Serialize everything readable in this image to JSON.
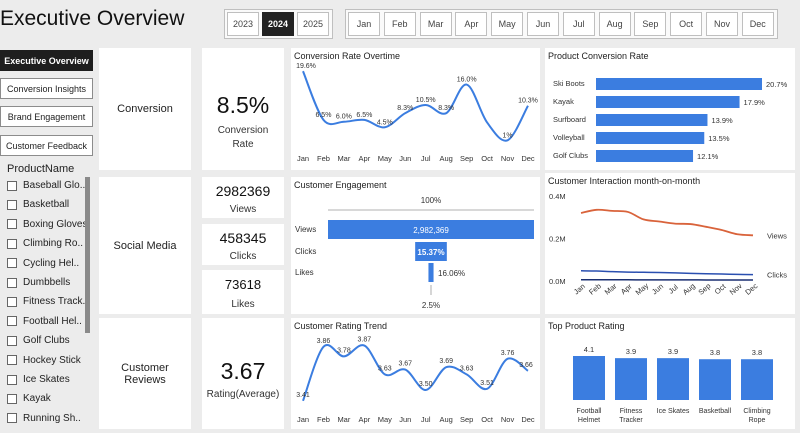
{
  "header": {
    "title": "Executive Overview"
  },
  "years": {
    "items": [
      "2023",
      "2024",
      "2025"
    ],
    "selected": "2024"
  },
  "months": [
    "Jan",
    "Feb",
    "Mar",
    "Apr",
    "May",
    "Jun",
    "Jul",
    "Aug",
    "Sep",
    "Oct",
    "Nov",
    "Dec"
  ],
  "nav": {
    "items": [
      "Executive Overview",
      "Conversion Insights",
      "Brand Engagement",
      "Customer Feedback"
    ],
    "active": "Executive Overview"
  },
  "slicer": {
    "title": "ProductName",
    "items": [
      "Baseball Glo..",
      "Basketball",
      "Boxing Gloves",
      "Climbing Ro..",
      "Cycling Hel..",
      "Dumbbells",
      "Fitness Track..",
      "Football Hel..",
      "Golf Clubs",
      "Hockey Stick",
      "Ice Skates",
      "Kayak",
      "Running Sh.."
    ]
  },
  "sections": {
    "conversion": "Conversion",
    "social": "Social Media",
    "reviews": "Customer Reviews"
  },
  "kpis": {
    "conversion_rate": {
      "value": "8.5%",
      "label": "Conversion Rate"
    },
    "views": {
      "value": "2982369",
      "label": "Views"
    },
    "clicks": {
      "value": "458345",
      "label": "Clicks"
    },
    "likes": {
      "value": "73618",
      "label": "Likes"
    },
    "rating": {
      "value": "3.67",
      "label": "Rating(Average)"
    }
  },
  "chart_data": [
    {
      "id": "conversion_trend",
      "type": "line",
      "title": "Conversion Rate Overtime",
      "x": [
        "Jan",
        "Feb",
        "Mar",
        "Apr",
        "May",
        "Jun",
        "Jul",
        "Aug",
        "Sep",
        "Oct",
        "Nov",
        "Dec"
      ],
      "values": [
        19.6,
        6.5,
        6.0,
        6.5,
        4.5,
        8.3,
        10.5,
        8.3,
        16.0,
        5.8,
        1,
        10.3
      ],
      "labels": [
        "19.6%",
        "6.5%",
        "6.0%",
        "6.5%",
        "4.5%",
        "8.3%",
        "10.5%",
        "8.3%",
        "16.0%",
        "",
        "1%",
        "10.3%"
      ],
      "color": "#3b7de0"
    },
    {
      "id": "product_conversion",
      "type": "bar",
      "title": "Product Conversion Rate",
      "categories": [
        "Ski Boots",
        "Kayak",
        "Surfboard",
        "Volleyball",
        "Golf Clubs"
      ],
      "values": [
        20.7,
        17.9,
        13.9,
        13.5,
        12.1
      ],
      "labels": [
        "20.7%",
        "17.9%",
        "13.9%",
        "13.5%",
        "12.1%"
      ],
      "color": "#3b7de0"
    },
    {
      "id": "engagement_funnel",
      "type": "bar",
      "title": "Customer Engagement",
      "categories": [
        "Views",
        "Clicks",
        "Likes"
      ],
      "values": [
        2982369,
        458345,
        73618
      ],
      "top_label": "100%",
      "bar_labels": [
        "2,982,369",
        "15.37%",
        "16.06%"
      ],
      "bottom_label": "2.5%",
      "color": "#3b7de0"
    },
    {
      "id": "interaction_mom",
      "type": "line",
      "title": "Customer Interaction month-on-month",
      "x": [
        "Jan",
        "Feb",
        "Mar",
        "Apr",
        "May",
        "Jun",
        "Jul",
        "Aug",
        "Sep",
        "Oct",
        "Nov",
        "Dec"
      ],
      "y_ticks": [
        "0.4M",
        "0.2M",
        "0.0M"
      ],
      "ylim": [
        0,
        400000
      ],
      "series": [
        {
          "name": "Views",
          "values": [
            320000,
            335000,
            330000,
            325000,
            290000,
            280000,
            270000,
            268000,
            255000,
            240000,
            220000,
            215000
          ],
          "color": "#d9633b"
        },
        {
          "name": "Clicks",
          "values": [
            48000,
            47000,
            44000,
            42000,
            41000,
            40000,
            38000,
            36000,
            34000,
            33000,
            31000,
            30000
          ],
          "color": "#2a4fb0"
        },
        {
          "name": "",
          "values": [
            6000,
            6000,
            5800,
            5600,
            5500,
            5400,
            5200,
            5100,
            5000,
            4900,
            4800,
            4700
          ],
          "color": "#1a2f70"
        }
      ]
    },
    {
      "id": "rating_trend",
      "type": "line",
      "title": "Customer Rating Trend",
      "x": [
        "Jan",
        "Feb",
        "Mar",
        "Apr",
        "May",
        "Jun",
        "Jul",
        "Aug",
        "Sep",
        "Oct",
        "Nov",
        "Dec"
      ],
      "values": [
        3.41,
        3.86,
        3.78,
        3.87,
        3.63,
        3.67,
        3.5,
        3.69,
        3.63,
        3.51,
        3.76,
        3.66
      ],
      "labels": [
        "3.41",
        "3.86",
        "3.78",
        "3.87",
        "3.63",
        "3.67",
        "3.50",
        "3.69",
        "3.63",
        "3.51",
        "3.76",
        "3.66"
      ],
      "color": "#3b7de0"
    },
    {
      "id": "top_product_rating",
      "type": "bar",
      "title": "Top Product Rating",
      "categories": [
        "Football Helmet",
        "Fitness Tracker",
        "Ice Skates",
        "Basketball",
        "Climbing Rope"
      ],
      "tick_labels": [
        [
          "Football",
          "Helmet"
        ],
        [
          "Fitness",
          "Tracker"
        ],
        [
          "Ice Skates"
        ],
        [
          "Basketball"
        ],
        [
          "Climbing",
          "Rope"
        ]
      ],
      "values": [
        4.1,
        3.9,
        3.9,
        3.8,
        3.8
      ],
      "labels": [
        "4.1",
        "3.9",
        "3.9",
        "3.8",
        "3.8"
      ],
      "color": "#3b7de0"
    }
  ]
}
